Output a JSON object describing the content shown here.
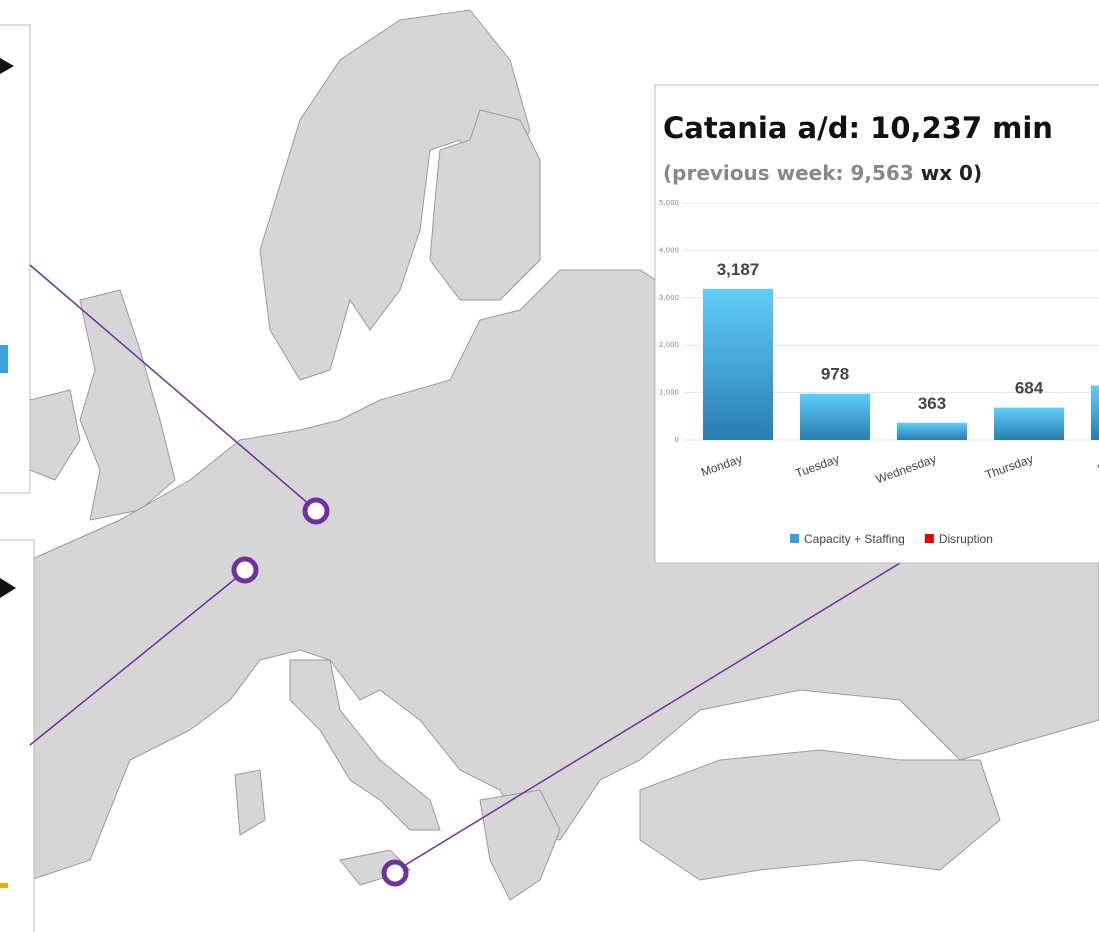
{
  "chart_data": {
    "type": "bar",
    "title": "Catania a/d: 10,237 min",
    "subtitle_parts": [
      "(previous week: 9,563 ",
      "wx 0",
      ")"
    ],
    "categories": [
      "Monday",
      "Tuesday",
      "Wednesday",
      "Thursday",
      "Friday"
    ],
    "values": [
      3187,
      978,
      363,
      684,
      1150
    ],
    "value_labels": [
      "3,187",
      "978",
      "363",
      "684",
      null
    ],
    "color": "#4fb8e8",
    "ylim": [
      0,
      5000
    ],
    "yticks": [
      0,
      {
        "value": 1000,
        "label": "1,000"
      },
      {
        "value": 2000,
        "label": "2,000"
      },
      {
        "value": 3000,
        "label": "3,000"
      },
      {
        "value": 4000,
        "label": "4,000"
      },
      {
        "value": 5000,
        "label": "5,000"
      }
    ],
    "grid": true,
    "legend": [
      {
        "name": "Capacity + Staffing",
        "color": "#3aa0d8"
      },
      {
        "name": "Disruption",
        "color": "#e00000"
      }
    ]
  }
}
